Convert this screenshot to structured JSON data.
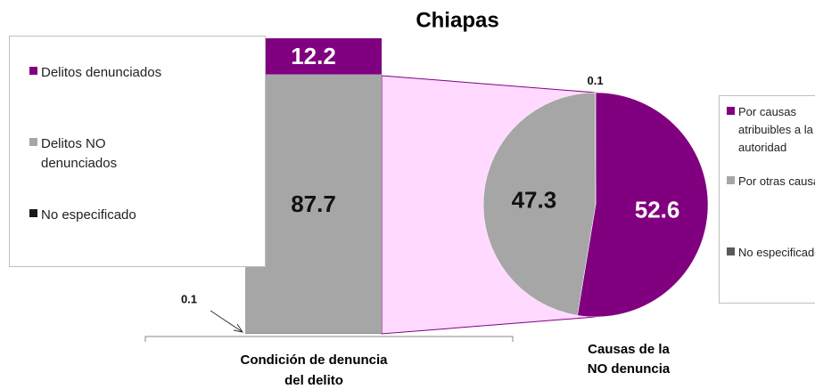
{
  "chart_data": [
    {
      "type": "stacked_bar",
      "title": "Chiapas",
      "xlabel": "Condición de denuncia del delito",
      "series": [
        {
          "name": "Delitos denunciados",
          "color": "#800080",
          "values": [
            12.2
          ]
        },
        {
          "name": "Delitos NO denunciados",
          "color": "#a6a6a6",
          "values": [
            87.7
          ]
        },
        {
          "name": "No especificado",
          "color": "#1a1a1a",
          "values": [
            0.1
          ]
        }
      ]
    },
    {
      "type": "pie",
      "title": "Causas de la NO denuncia",
      "categories": [
        "Por causas atribuibles a la autoridad",
        "Por otras causas",
        "No especificado"
      ],
      "values": [
        52.6,
        47.3,
        0.1
      ],
      "colors": [
        "#800080",
        "#a6a6a6",
        "#595959"
      ]
    }
  ]
}
